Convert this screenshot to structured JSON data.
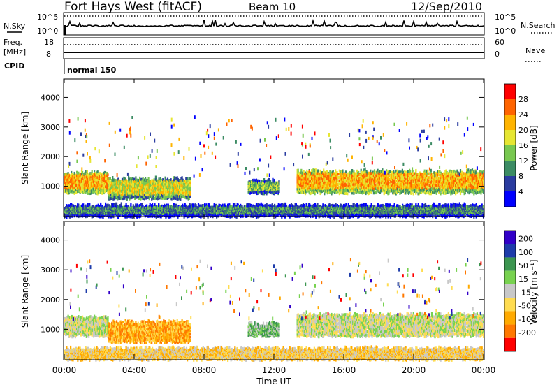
{
  "header": {
    "station": "Fort Hays West (fitACF)",
    "beam": "Beam 10",
    "date": "12/Sep/2010"
  },
  "top_panels": {
    "nsky_label": "N.Sky",
    "nsky_tick_hi": "10^5",
    "nsky_tick_lo": "10^0",
    "nsearch_label": "N.Search",
    "freq_label_1": "Freq.",
    "freq_label_2": "[MHz]",
    "freq_tick_hi": "18",
    "freq_tick_lo": "8",
    "nave_label": "Nave",
    "nave_tick_hi": "60",
    "nave_tick_lo": "0",
    "cpid_label": "CPID",
    "cpid_value": "normal 150"
  },
  "colors": {
    "power_scale": [
      "#0000ff",
      "#2a3ca0",
      "#3c8c64",
      "#78c850",
      "#e6e632",
      "#ffb400",
      "#ff6400",
      "#ff0000"
    ],
    "velocity_scale": [
      "#ff0000",
      "#ff7800",
      "#ffaa00",
      "#ffdc50",
      "#c8c8c8",
      "#78d250",
      "#3c9650",
      "#1e3caa",
      "#3200c8"
    ]
  },
  "chart_data": [
    {
      "type": "heatmap",
      "name": "power",
      "ylabel": "Slant Range [km]",
      "ylim": [
        0,
        4600
      ],
      "yticks": [
        "1000",
        "2000",
        "3000",
        "4000"
      ],
      "colorbar_label": "Power [dB]",
      "colorbar_ticks": [
        "4",
        "8",
        "12",
        "16",
        "20",
        "24",
        "28"
      ],
      "bands": [
        {
          "x": [
            0.0,
            2.5
          ],
          "y": [
            850,
            1550
          ],
          "level": 5
        },
        {
          "x": [
            2.5,
            7.2
          ],
          "y": [
            650,
            1350
          ],
          "level": 4
        },
        {
          "x": [
            10.5,
            12.3
          ],
          "y": [
            850,
            1250
          ],
          "level": 3
        },
        {
          "x": [
            13.3,
            24.0
          ],
          "y": [
            850,
            1600
          ],
          "level": 5
        },
        {
          "x": [
            0.0,
            24.0
          ],
          "y": [
            60,
            420
          ],
          "level": 2
        }
      ]
    },
    {
      "type": "heatmap",
      "name": "velocity",
      "ylabel": "Slant Range [km]",
      "ylim": [
        0,
        4600
      ],
      "yticks": [
        "1000",
        "2000",
        "3000",
        "4000"
      ],
      "xlabel": "Time UT",
      "xticks": [
        "00:00",
        "04:00",
        "08:00",
        "12:00",
        "16:00",
        "20:00",
        "00:00"
      ],
      "colorbar_label": "Velocity [m s⁻¹]",
      "colorbar_ticks": [
        "200",
        "100",
        "50",
        "15",
        "-15",
        "-50",
        "-100",
        "-200"
      ],
      "bands": [
        {
          "x": [
            0.0,
            2.5
          ],
          "y": [
            850,
            1500
          ],
          "level": 4
        },
        {
          "x": [
            2.5,
            7.2
          ],
          "y": [
            650,
            1350
          ],
          "level": 2
        },
        {
          "x": [
            10.5,
            12.3
          ],
          "y": [
            850,
            1250
          ],
          "level": 5
        },
        {
          "x": [
            13.3,
            24.0
          ],
          "y": [
            850,
            1600
          ],
          "level": 4
        },
        {
          "x": [
            0.0,
            24.0
          ],
          "y": [
            60,
            420
          ],
          "level": 3
        }
      ]
    }
  ]
}
